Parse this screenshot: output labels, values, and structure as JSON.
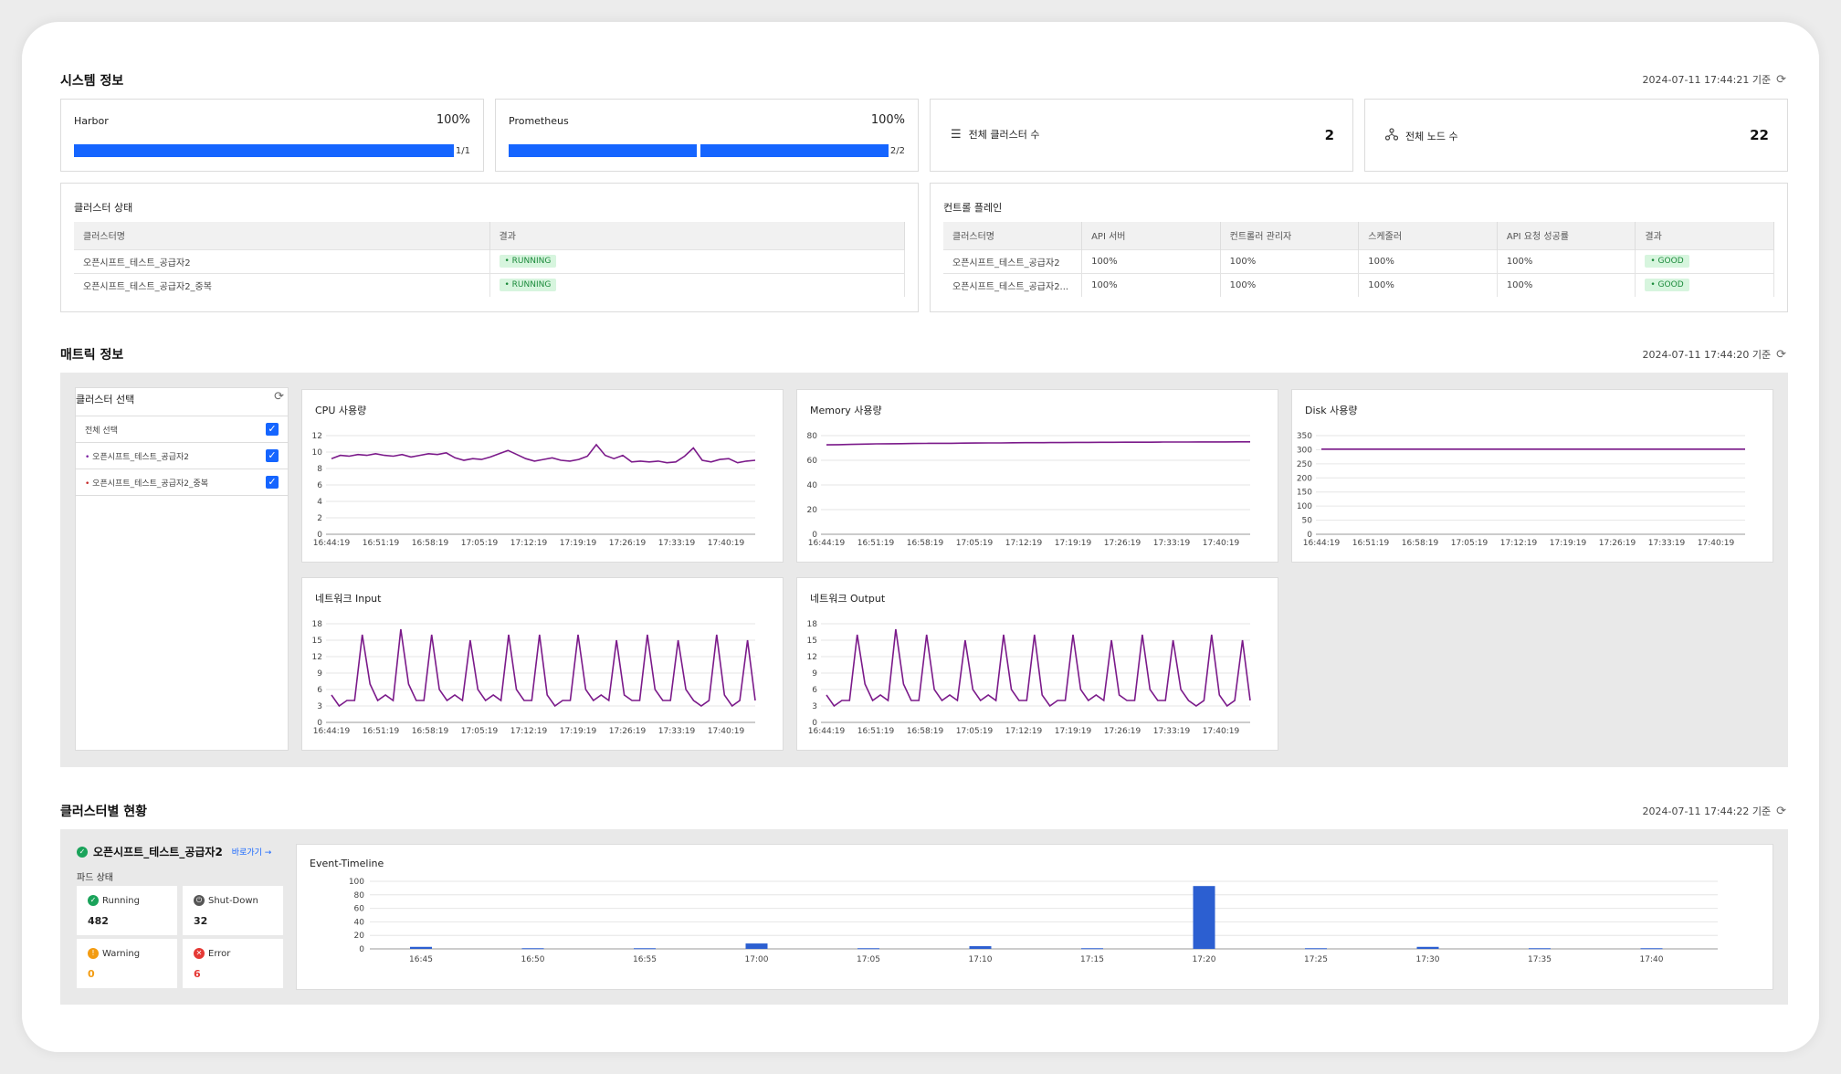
{
  "system": {
    "title": "시스템 정보",
    "timestamp": "2024-07-11 17:44:21 기준",
    "harbor": {
      "label": "Harbor",
      "percent": "100%",
      "fraction": "1/1",
      "segments": 1,
      "filled": 1
    },
    "prometheus": {
      "label": "Prometheus",
      "percent": "100%",
      "fraction": "2/2",
      "segments": 2,
      "filled": 2
    },
    "total_clusters": {
      "label": "전체 클러스터 수",
      "value": "2",
      "icon": "list-icon"
    },
    "total_nodes": {
      "label": "전체 노드 수",
      "value": "22",
      "icon": "nodes-icon"
    }
  },
  "cluster_status": {
    "title": "클러스터 상태",
    "columns": [
      "클러스터명",
      "결과"
    ],
    "rows": [
      {
        "name": "오픈시프트_테스트_공급자2",
        "result": "• RUNNING"
      },
      {
        "name": "오픈시프트_테스트_공급자2_중복",
        "result": "• RUNNING"
      }
    ]
  },
  "control_plane": {
    "title": "컨트롤 플레인",
    "columns": [
      "클러스터명",
      "API 서버",
      "컨트롤러 관리자",
      "스케줄러",
      "API 요청 성공률",
      "결과"
    ],
    "rows": [
      {
        "name": "오픈시프트_테스트_공급자2",
        "api": "100%",
        "ctrl": "100%",
        "sched": "100%",
        "rate": "100%",
        "result": "• GOOD"
      },
      {
        "name": "오픈시프트_테스트_공급자2...",
        "api": "100%",
        "ctrl": "100%",
        "sched": "100%",
        "rate": "100%",
        "result": "• GOOD"
      }
    ]
  },
  "metrics": {
    "title": "매트릭 정보",
    "timestamp": "2024-07-11 17:44:20 기준",
    "selector": {
      "title": "클러스터 선택",
      "items": [
        {
          "label": "전체 선택",
          "checked": true
        },
        {
          "label": "오픈시프트_테스트_공급자2",
          "checked": true,
          "color": "#7b1fa2"
        },
        {
          "label": "오픈시프트_테스트_공급자2_중복",
          "checked": true,
          "color": "#c62828"
        }
      ]
    }
  },
  "chart_data": [
    {
      "type": "line",
      "title": "CPU 사용량",
      "x_ticks": [
        "16:44:19",
        "16:51:19",
        "16:58:19",
        "17:05:19",
        "17:12:19",
        "17:19:19",
        "17:26:19",
        "17:33:19",
        "17:40:19"
      ],
      "y_ticks": [
        0,
        2,
        4,
        6,
        8,
        10,
        12
      ],
      "ylim": [
        0,
        12
      ],
      "color": "#7b1a8a",
      "values": [
        9.2,
        9.6,
        9.5,
        9.7,
        9.6,
        9.8,
        9.6,
        9.5,
        9.7,
        9.4,
        9.6,
        9.8,
        9.7,
        9.9,
        9.3,
        9.0,
        9.2,
        9.1,
        9.4,
        9.8,
        10.2,
        9.7,
        9.2,
        8.9,
        9.1,
        9.3,
        9.0,
        8.9,
        9.1,
        9.5,
        10.9,
        9.6,
        9.2,
        9.6,
        8.8,
        8.9,
        8.8,
        8.9,
        8.7,
        8.8,
        9.5,
        10.5,
        9.0,
        8.8,
        9.1,
        9.2,
        8.7,
        8.9,
        9.0
      ]
    },
    {
      "type": "line",
      "title": "Memory 사용량",
      "x_ticks": [
        "16:44:19",
        "16:51:19",
        "16:58:19",
        "17:05:19",
        "17:12:19",
        "17:19:19",
        "17:26:19",
        "17:33:19",
        "17:40:19"
      ],
      "y_ticks": [
        0,
        20,
        40,
        60,
        80
      ],
      "ylim": [
        0,
        80
      ],
      "color": "#7b1a8a",
      "values": [
        72.5,
        72.7,
        72.9,
        73.1,
        73.3,
        73.4,
        73.5,
        73.6,
        73.7,
        73.8,
        73.8,
        73.9,
        74.0,
        74.1,
        74.1,
        74.2,
        74.3,
        74.3,
        74.4,
        74.4,
        74.5,
        74.5,
        74.6,
        74.6,
        74.7,
        74.7,
        74.7,
        74.8,
        74.8,
        74.8,
        74.9,
        74.9,
        74.9,
        75.0,
        75.0
      ]
    },
    {
      "type": "line",
      "title": "Disk 사용량",
      "x_ticks": [
        "16:44:19",
        "16:51:19",
        "16:58:19",
        "17:05:19",
        "17:12:19",
        "17:19:19",
        "17:26:19",
        "17:33:19",
        "17:40:19"
      ],
      "y_ticks": [
        0,
        50,
        100,
        150,
        200,
        250,
        300,
        350
      ],
      "ylim": [
        0,
        350
      ],
      "color": "#7b1a8a",
      "values": [
        302,
        302,
        302,
        302,
        302,
        302,
        302,
        302,
        302,
        302,
        302,
        302,
        302,
        302,
        302,
        302,
        302,
        302,
        302,
        302
      ]
    },
    {
      "type": "line",
      "title": "네트워크 Input",
      "x_ticks": [
        "16:44:19",
        "16:51:19",
        "16:58:19",
        "17:05:19",
        "17:12:19",
        "17:19:19",
        "17:26:19",
        "17:33:19",
        "17:40:19"
      ],
      "y_ticks": [
        0,
        3,
        6,
        9,
        12,
        15,
        18
      ],
      "ylim": [
        0,
        18
      ],
      "color": "#7b1a8a",
      "values": [
        5,
        3,
        4,
        4,
        16,
        7,
        4,
        5,
        4,
        17,
        7,
        4,
        4,
        16,
        6,
        4,
        5,
        4,
        15,
        6,
        4,
        5,
        4,
        16,
        6,
        4,
        4,
        16,
        5,
        3,
        4,
        4,
        16,
        6,
        4,
        5,
        4,
        15,
        5,
        4,
        4,
        16,
        6,
        4,
        4,
        15,
        6,
        4,
        3,
        4,
        16,
        5,
        3,
        4,
        15,
        4
      ]
    },
    {
      "type": "line",
      "title": "네트워크 Output",
      "x_ticks": [
        "16:44:19",
        "16:51:19",
        "16:58:19",
        "17:05:19",
        "17:12:19",
        "17:19:19",
        "17:26:19",
        "17:33:19",
        "17:40:19"
      ],
      "y_ticks": [
        0,
        3,
        6,
        9,
        12,
        15,
        18
      ],
      "ylim": [
        0,
        18
      ],
      "color": "#7b1a8a",
      "values": [
        5,
        3,
        4,
        4,
        16,
        7,
        4,
        5,
        4,
        17,
        7,
        4,
        4,
        16,
        6,
        4,
        5,
        4,
        15,
        6,
        4,
        5,
        4,
        16,
        6,
        4,
        4,
        16,
        5,
        3,
        4,
        4,
        16,
        6,
        4,
        5,
        4,
        15,
        5,
        4,
        4,
        16,
        6,
        4,
        4,
        15,
        6,
        4,
        3,
        4,
        16,
        5,
        3,
        4,
        15,
        4
      ]
    },
    {
      "type": "bar",
      "title": "Event-Timeline",
      "categories": [
        "16:45",
        "16:50",
        "16:55",
        "17:00",
        "17:05",
        "17:10",
        "17:15",
        "17:20",
        "17:25",
        "17:30",
        "17:35",
        "17:40"
      ],
      "values": [
        3,
        1,
        1,
        8,
        1,
        4,
        1,
        93,
        1,
        3,
        1,
        1
      ],
      "y_ticks": [
        0,
        20,
        40,
        60,
        80,
        100
      ],
      "ylim": [
        0,
        100
      ],
      "color": "#2c5fd1"
    }
  ],
  "cluster_section": {
    "title": "클러스터별 현황",
    "timestamp": "2024-07-11 17:44:22 기준",
    "cluster_name": "오픈시프트_테스트_공급자2",
    "goto_link": "바로가기 →",
    "pod_status_title": "파드 상태",
    "pods": [
      {
        "label": "Running",
        "value": "482",
        "color": "#1aa35a"
      },
      {
        "label": "Shut-Down",
        "value": "32",
        "color": "#555555"
      },
      {
        "label": "Warning",
        "value": "0",
        "color": "#f39c12"
      },
      {
        "label": "Error",
        "value": "6",
        "color": "#e53935"
      }
    ]
  }
}
